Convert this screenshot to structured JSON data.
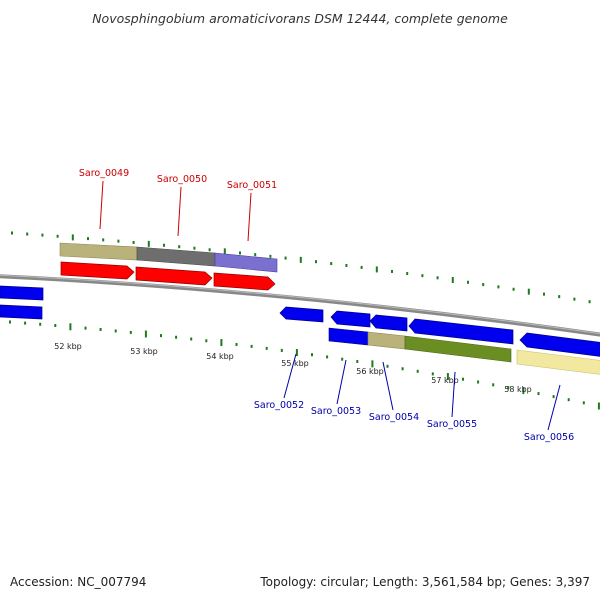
{
  "title": "Novosphingobium aromaticivorans DSM 12444, complete genome",
  "footer": {
    "accession": "Accession: NC_007794",
    "summary": "Topology: circular; Length: 3,561,584 bp; Genes: 3,397"
  },
  "colors": {
    "forward_label": "#cc0000",
    "reverse_label": "#0000aa",
    "tick": "#1e7a1e",
    "backbone": "#888888",
    "forward_genes": "#ff0000",
    "reverse_genes": "#0000ee",
    "cog_tan": "#b9b27a",
    "cog_gray": "#6e6e6e",
    "cog_purple": "#7b6fd0",
    "cog_olive": "#6b8e23",
    "cog_pale_yellow": "#f2e8a0"
  },
  "ticks": [
    {
      "kbp": 52,
      "label": "52 kbp"
    },
    {
      "kbp": 53,
      "label": "53 kbp"
    },
    {
      "kbp": 54,
      "label": "54 kbp"
    },
    {
      "kbp": 55,
      "label": "55 kbp"
    },
    {
      "kbp": 56,
      "label": "56 kbp"
    },
    {
      "kbp": 57,
      "label": "57 kbp"
    },
    {
      "kbp": 58,
      "label": "58 kbp"
    }
  ],
  "forward_gene_labels": [
    {
      "label": "Saro_0049"
    },
    {
      "label": "Saro_0050"
    },
    {
      "label": "Saro_0051"
    }
  ],
  "reverse_gene_labels": [
    {
      "label": "Saro_0052"
    },
    {
      "label": "Saro_0053"
    },
    {
      "label": "Saro_0054"
    },
    {
      "label": "Saro_0055"
    },
    {
      "label": "Saro_0056"
    }
  ]
}
